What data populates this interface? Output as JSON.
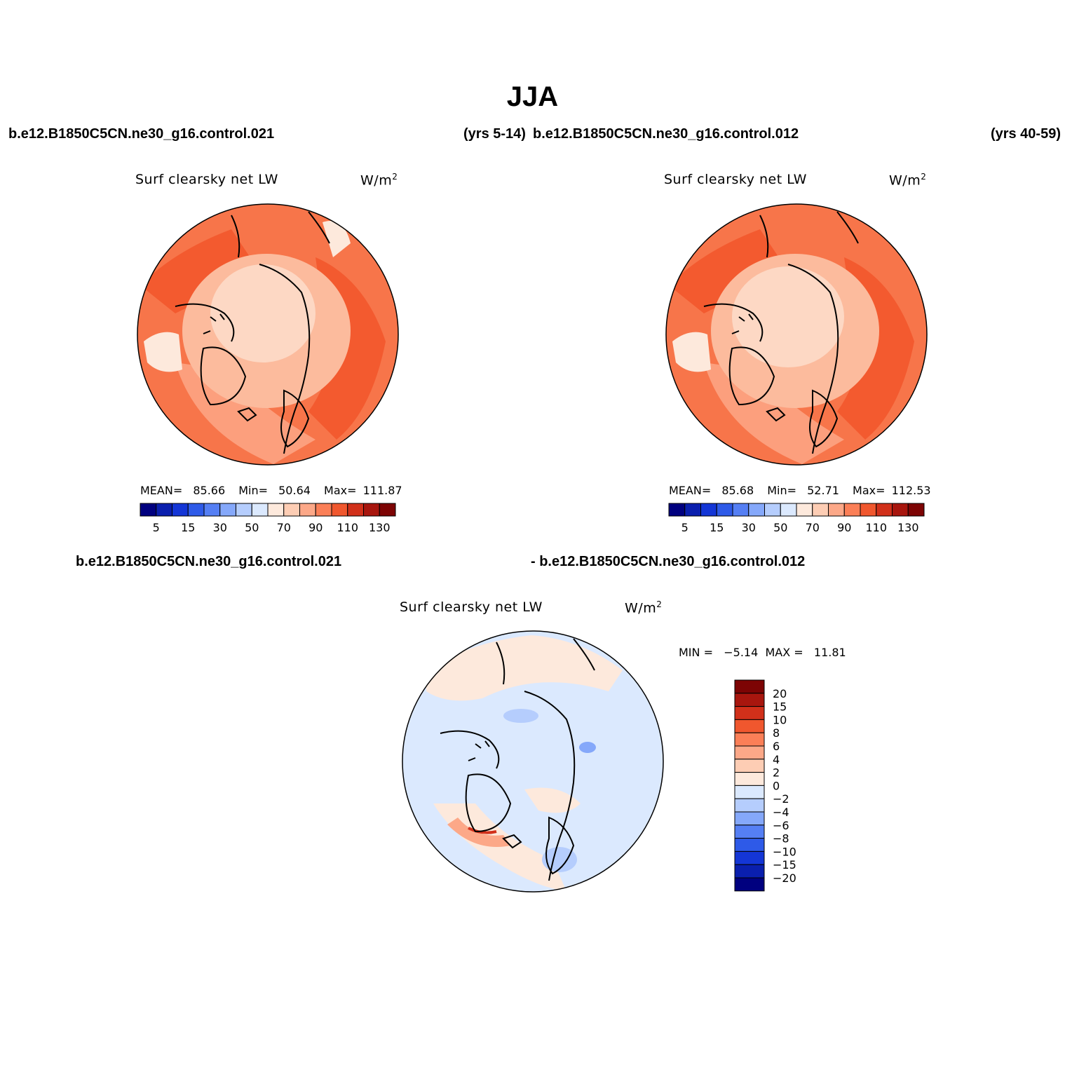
{
  "title": "JJA",
  "header": {
    "left_case": "b.e12.B1850C5CN.ne30_g16.control.021",
    "left_years": "(yrs 5-14)",
    "right_case": "b.e12.B1850C5CN.ne30_g16.control.012",
    "right_years": "(yrs 40-59)"
  },
  "panels": [
    {
      "title": "Surf clearsky net LW",
      "units_base": "W/m",
      "units_exp": "2",
      "stats": {
        "mean_label": "MEAN=",
        "mean": "85.66",
        "min_label": "Min=",
        "min": "50.64",
        "max_label": "Max=",
        "max": "111.87"
      }
    },
    {
      "title": "Surf clearsky net LW",
      "units_base": "W/m",
      "units_exp": "2",
      "stats": {
        "mean_label": "MEAN=",
        "mean": "85.68",
        "min_label": "Min=",
        "min": "52.71",
        "max_label": "Max=",
        "max": "112.53"
      }
    }
  ],
  "colorbar_h": {
    "colors": [
      "#00007f",
      "#0a1fae",
      "#1436d6",
      "#2e5ae8",
      "#557ff4",
      "#85a8fa",
      "#b5cdfd",
      "#dbe9fe",
      "#fde9dc",
      "#fdcdb4",
      "#fca888",
      "#fb7f57",
      "#f0572e",
      "#d1301a",
      "#a8160e",
      "#7d0404"
    ],
    "labels": [
      "5",
      "15",
      "30",
      "50",
      "70",
      "90",
      "110",
      "130"
    ]
  },
  "diff": {
    "header_left": "b.e12.B1850C5CN.ne30_g16.control.021",
    "header_right": "- b.e12.B1850C5CN.ne30_g16.control.012",
    "title": "Surf clearsky net LW",
    "units_base": "W/m",
    "units_exp": "2",
    "minmax": "MIN =   −5.14  MAX =   11.81"
  },
  "colorbar_v": {
    "colors": [
      "#7d0404",
      "#a8160e",
      "#d1301a",
      "#f0572e",
      "#fb7f57",
      "#fca888",
      "#fdcdb4",
      "#fde9dc",
      "#dbe9fe",
      "#b5cdfd",
      "#85a8fa",
      "#557ff4",
      "#2e5ae8",
      "#1436d6",
      "#0a1fae",
      "#00007f"
    ],
    "labels": [
      "20",
      "15",
      "10",
      "8",
      "6",
      "4",
      "2",
      "0",
      "−2",
      "−4",
      "−6",
      "−8",
      "−10",
      "−15",
      "−20"
    ]
  }
}
